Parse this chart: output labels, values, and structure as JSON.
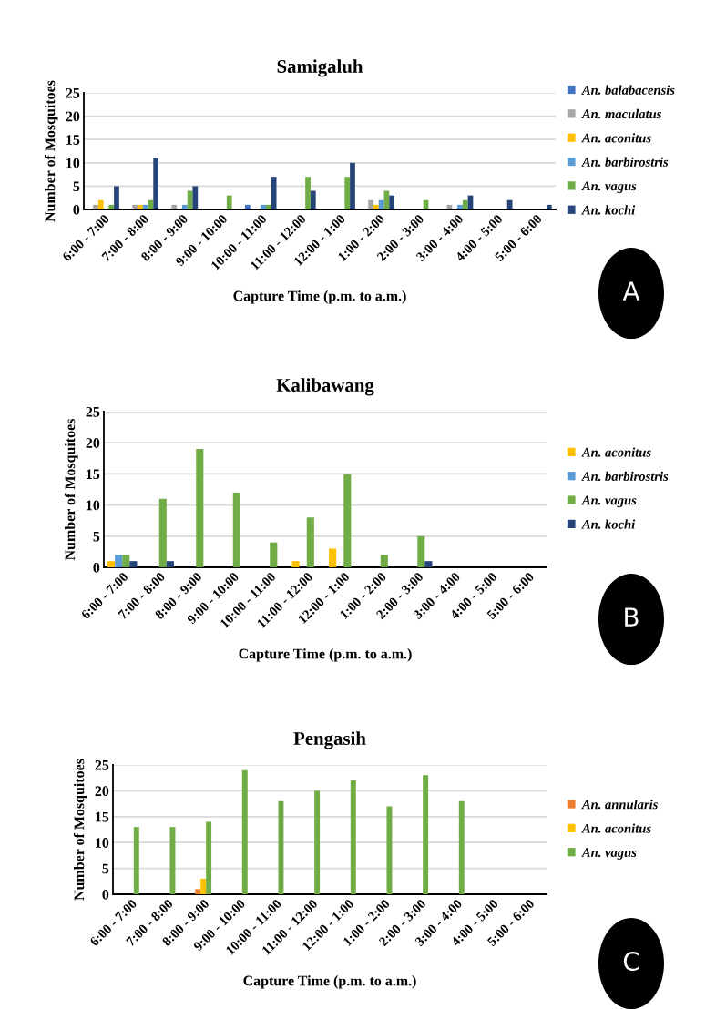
{
  "chart_data": [
    {
      "type": "bar",
      "title": "Samigaluh",
      "xlabel": "Capture Time (p.m. to a.m.)",
      "ylabel": "Number of Mosquitoes",
      "categories": [
        "6:00 - 7:00",
        "7:00 - 8:00",
        "8:00 - 9:00",
        "9:00 - 10:00",
        "10:00 - 11:00",
        "11:00 - 12:00",
        "12:00 - 1:00",
        "1:00 - 2:00",
        "2:00 - 3:00",
        "3:00 - 4:00",
        "4:00 - 5:00",
        "5:00 - 6:00"
      ],
      "ylim": [
        0,
        25
      ],
      "yticks": [
        0,
        5,
        10,
        15,
        20,
        25
      ],
      "grid": "y",
      "legend": "right",
      "annotations": [
        "A"
      ],
      "series": [
        {
          "name": "An. balabacensis",
          "color": "#4472c4",
          "values": [
            0,
            0,
            0,
            0,
            1,
            0,
            0,
            0,
            0,
            0,
            0,
            0
          ]
        },
        {
          "name": "An. maculatus",
          "color": "#a5a5a5",
          "values": [
            1,
            1,
            1,
            0,
            0,
            0,
            0,
            2,
            0,
            1,
            0,
            0
          ]
        },
        {
          "name": "An. aconitus",
          "color": "#ffc000",
          "values": [
            2,
            1,
            0,
            0,
            0,
            0,
            0,
            1,
            0,
            0,
            0,
            0
          ]
        },
        {
          "name": "An. barbirostris",
          "color": "#5b9bd5",
          "values": [
            0,
            1,
            1,
            0,
            1,
            0,
            0,
            2,
            0,
            1,
            0,
            0
          ]
        },
        {
          "name": "An. vagus",
          "color": "#70ad47",
          "values": [
            1,
            2,
            4,
            3,
            1,
            7,
            7,
            4,
            2,
            2,
            0,
            0
          ]
        },
        {
          "name": "An. kochi",
          "color": "#264478",
          "values": [
            5,
            11,
            5,
            0,
            7,
            4,
            10,
            3,
            0,
            3,
            2,
            1
          ]
        }
      ]
    },
    {
      "type": "bar",
      "title": "Kalibawang",
      "xlabel": "Capture Time (p.m. to a.m.)",
      "ylabel": "Number of Mosquitoes",
      "categories": [
        "6:00 - 7:00",
        "7:00 - 8:00",
        "8:00 - 9:00",
        "9:00 - 10:00",
        "10:00 - 11:00",
        "11:00 - 12:00",
        "12:00 - 1:00",
        "1:00 - 2:00",
        "2:00 - 3:00",
        "3:00 - 4:00",
        "4:00 - 5:00",
        "5:00 - 6:00"
      ],
      "ylim": [
        0,
        25
      ],
      "yticks": [
        0,
        5,
        10,
        15,
        20,
        25
      ],
      "grid": "y",
      "legend": "right",
      "annotations": [
        "B"
      ],
      "series": [
        {
          "name": "An. aconitus",
          "color": "#ffc000",
          "values": [
            1,
            0,
            0,
            0,
            0,
            1,
            3,
            0,
            0,
            0,
            0,
            0
          ]
        },
        {
          "name": "An. barbirostris",
          "color": "#5b9bd5",
          "values": [
            2,
            0,
            0,
            0,
            0,
            0,
            0,
            0,
            0,
            0,
            0,
            0
          ]
        },
        {
          "name": "An. vagus",
          "color": "#70ad47",
          "values": [
            2,
            11,
            19,
            12,
            4,
            8,
            15,
            2,
            5,
            0,
            0,
            0
          ]
        },
        {
          "name": "An. kochi",
          "color": "#264478",
          "values": [
            1,
            1,
            0,
            0,
            0,
            0,
            0,
            0,
            1,
            0,
            0,
            0
          ]
        }
      ]
    },
    {
      "type": "bar",
      "title": "Pengasih",
      "xlabel": "Capture Time (p.m. to a.m.)",
      "ylabel": "Number of Mosquitoes",
      "categories": [
        "6:00 - 7:00",
        "7:00 - 8:00",
        "8:00 - 9:00",
        "9:00 - 10:00",
        "10:00 - 11:00",
        "11:00 - 12:00",
        "12:00 - 1:00",
        "1:00 - 2:00",
        "2:00 - 3:00",
        "3:00 - 4:00",
        "4:00 - 5:00",
        "5:00 - 6:00"
      ],
      "ylim": [
        0,
        25
      ],
      "yticks": [
        0,
        5,
        10,
        15,
        20,
        25
      ],
      "grid": "y",
      "legend": "right",
      "annotations": [
        "C"
      ],
      "series": [
        {
          "name": "An. annularis",
          "color": "#ed7d31",
          "values": [
            0,
            0,
            1,
            0,
            0,
            0,
            0,
            0,
            0,
            0,
            0,
            0
          ]
        },
        {
          "name": "An. aconitus",
          "color": "#ffc000",
          "values": [
            0,
            0,
            3,
            0,
            0,
            0,
            0,
            0,
            0,
            0,
            0,
            0
          ]
        },
        {
          "name": "An. vagus",
          "color": "#70ad47",
          "values": [
            13,
            13,
            14,
            24,
            18,
            20,
            22,
            17,
            23,
            18,
            0,
            0
          ]
        }
      ]
    }
  ]
}
